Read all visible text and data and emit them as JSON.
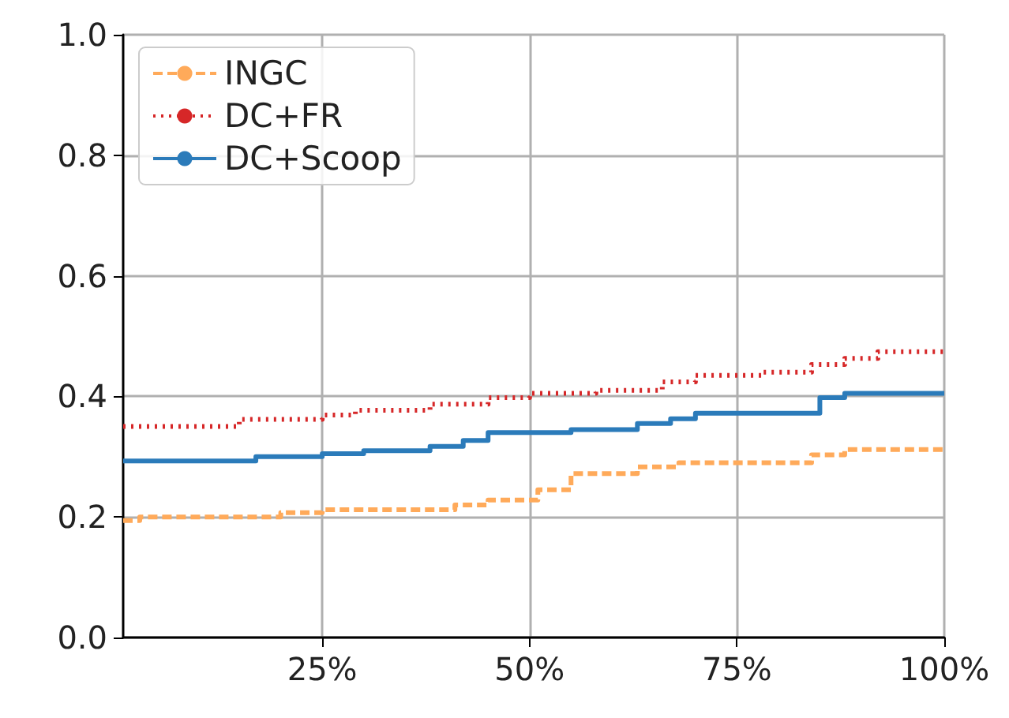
{
  "chart_data": {
    "type": "step",
    "xlim": [
      1,
      100
    ],
    "ylim": [
      0,
      1
    ],
    "xticks": [
      {
        "value": 25,
        "label": "25%"
      },
      {
        "value": 50,
        "label": "50%"
      },
      {
        "value": 75,
        "label": "75%"
      },
      {
        "value": 100,
        "label": "100%"
      }
    ],
    "yticks": [
      {
        "value": 0,
        "label": "0.0"
      },
      {
        "value": 0.2,
        "label": "0.2"
      },
      {
        "value": 0.4,
        "label": "0.4"
      },
      {
        "value": 0.6,
        "label": "0.6"
      },
      {
        "value": 0.8,
        "label": "0.8"
      },
      {
        "value": 1,
        "label": "1.0"
      }
    ],
    "grid": true,
    "legend": "top left",
    "series": [
      {
        "name": "INGC",
        "color": "#ffaa5a",
        "line_style": "dashed",
        "x": [
          1,
          3,
          20,
          25,
          41,
          45,
          51,
          55,
          63,
          68,
          84,
          88,
          100
        ],
        "values": [
          0.194,
          0.2,
          0.207,
          0.212,
          0.22,
          0.228,
          0.245,
          0.272,
          0.283,
          0.29,
          0.303,
          0.312,
          0.312
        ]
      },
      {
        "name": "DC+FR",
        "color": "#d62728",
        "line_style": "dotted",
        "x": [
          1,
          15,
          25,
          29,
          38,
          45,
          50,
          58,
          66,
          70,
          78,
          84,
          88,
          92,
          100
        ],
        "values": [
          0.35,
          0.362,
          0.369,
          0.377,
          0.387,
          0.398,
          0.405,
          0.41,
          0.424,
          0.435,
          0.44,
          0.453,
          0.463,
          0.474,
          0.474
        ]
      },
      {
        "name": "DC+Scoop",
        "color": "#2b7bba",
        "line_style": "solid",
        "x": [
          1,
          17,
          25,
          30,
          38,
          42,
          45,
          55,
          63,
          67,
          70,
          85,
          88,
          100
        ],
        "values": [
          0.293,
          0.3,
          0.305,
          0.31,
          0.317,
          0.327,
          0.34,
          0.345,
          0.355,
          0.363,
          0.372,
          0.398,
          0.405,
          0.405
        ]
      }
    ]
  }
}
